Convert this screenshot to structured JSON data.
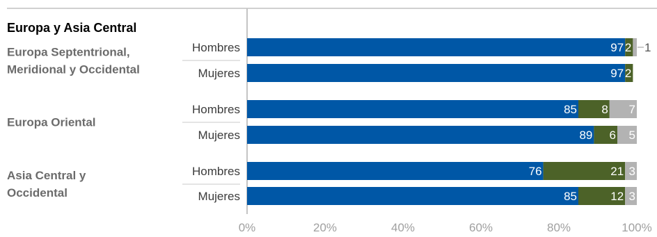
{
  "chart_data": {
    "type": "bar",
    "orientation": "horizontal",
    "stacked": true,
    "title": "Europa y Asia Central",
    "xlim": [
      0,
      100
    ],
    "x_ticks": [
      "0%",
      "20%",
      "40%",
      "60%",
      "80%",
      "100%"
    ],
    "colors": [
      "#0057a6",
      "#4c6228",
      "#b3b3b3"
    ],
    "groups": [
      {
        "label": [
          "Europa Septentrional,",
          "Meridional y Occidental"
        ],
        "rows": [
          {
            "label": "Hombres",
            "values": [
              97,
              2,
              1
            ],
            "value_labels": [
              "97",
              "2",
              "1"
            ]
          },
          {
            "label": "Mujeres",
            "values": [
              97,
              2,
              0
            ],
            "value_labels": [
              "97",
              "2",
              ""
            ]
          }
        ]
      },
      {
        "label": [
          "Europa Oriental"
        ],
        "rows": [
          {
            "label": "Hombres",
            "values": [
              85,
              8,
              7
            ],
            "value_labels": [
              "85",
              "8",
              "7"
            ]
          },
          {
            "label": "Mujeres",
            "values": [
              89,
              6,
              5
            ],
            "value_labels": [
              "89",
              "6",
              "5"
            ]
          }
        ]
      },
      {
        "label": [
          "Asia Central y",
          "Occidental"
        ],
        "rows": [
          {
            "label": "Hombres",
            "values": [
              76,
              21,
              3
            ],
            "value_labels": [
              "76",
              "21",
              "3"
            ]
          },
          {
            "label": "Mujeres",
            "values": [
              85,
              12,
              3
            ],
            "value_labels": [
              "85",
              "12",
              "3"
            ]
          }
        ]
      }
    ]
  }
}
